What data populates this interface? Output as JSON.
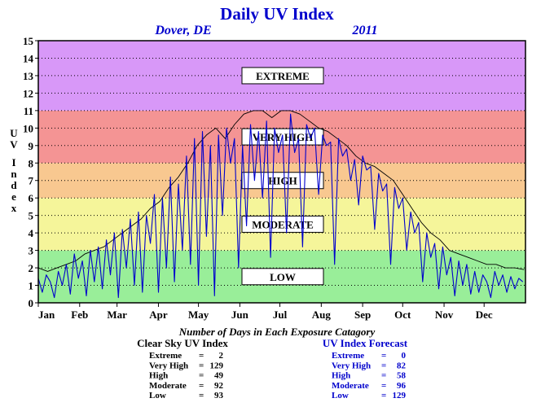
{
  "chart_data": {
    "type": "line",
    "title": "Daily UV Index",
    "location": "Dover, DE",
    "year": "2011",
    "ylabel": "UV Index",
    "ylim": [
      0,
      15
    ],
    "yticks": [
      "0",
      "1",
      "2",
      "3",
      "4",
      "5",
      "6",
      "7",
      "8",
      "9",
      "10",
      "11",
      "12",
      "13",
      "14",
      "15"
    ],
    "xlim": [
      1,
      366
    ],
    "x_tick_labels": [
      "Jan",
      "Feb",
      "Mar",
      "Apr",
      "May",
      "Jun",
      "Jul",
      "Aug",
      "Sep",
      "Oct",
      "Nov",
      "Dec"
    ],
    "month_start_days": [
      1,
      32,
      60,
      91,
      121,
      152,
      182,
      213,
      244,
      274,
      305,
      335
    ],
    "grid": true,
    "categories": [
      {
        "label": "LOW",
        "range": [
          0,
          3
        ],
        "color": "#99ee99"
      },
      {
        "label": "MODERATE",
        "range": [
          3,
          6
        ],
        "color": "#f5f59a"
      },
      {
        "label": "HIGH",
        "range": [
          6,
          8
        ],
        "color": "#f8c890"
      },
      {
        "label": "VERY HIGH",
        "range": [
          8,
          11
        ],
        "color": "#f49494"
      },
      {
        "label": "EXTREME",
        "range": [
          11,
          15
        ],
        "color": "#d898f8"
      }
    ],
    "series": [
      {
        "name": "Clear Sky UV Index",
        "color": "#000000",
        "x": [
          1,
          8,
          15,
          22,
          29,
          36,
          43,
          50,
          57,
          64,
          71,
          78,
          85,
          92,
          99,
          106,
          113,
          120,
          127,
          134,
          141,
          148,
          155,
          162,
          169,
          176,
          183,
          190,
          197,
          204,
          211,
          218,
          225,
          232,
          239,
          246,
          253,
          260,
          267,
          274,
          281,
          288,
          295,
          302,
          309,
          316,
          323,
          330,
          337,
          344,
          351,
          358,
          365
        ],
        "values": [
          2.0,
          1.8,
          2.0,
          2.2,
          2.4,
          2.8,
          3.0,
          3.2,
          3.6,
          4.0,
          4.4,
          4.8,
          5.4,
          5.8,
          6.6,
          7.2,
          8.0,
          9.0,
          9.6,
          10.0,
          9.4,
          10.2,
          10.8,
          11.0,
          11.0,
          10.6,
          11.0,
          11.0,
          10.8,
          10.4,
          10.0,
          9.8,
          9.4,
          9.0,
          8.4,
          8.0,
          7.8,
          7.4,
          7.0,
          6.2,
          5.4,
          4.6,
          4.0,
          3.6,
          3.0,
          2.8,
          2.6,
          2.4,
          2.2,
          2.2,
          2.0,
          2.0,
          1.9
        ]
      },
      {
        "name": "UV Index Forecast",
        "color": "#0000cc",
        "x": [
          1,
          4,
          7,
          10,
          13,
          16,
          19,
          22,
          25,
          28,
          31,
          34,
          37,
          40,
          43,
          46,
          49,
          52,
          55,
          58,
          61,
          64,
          67,
          70,
          73,
          76,
          79,
          82,
          85,
          88,
          91,
          94,
          97,
          100,
          103,
          106,
          109,
          112,
          115,
          118,
          121,
          124,
          127,
          130,
          133,
          136,
          139,
          142,
          145,
          148,
          151,
          154,
          157,
          160,
          163,
          166,
          169,
          172,
          175,
          178,
          181,
          184,
          187,
          190,
          193,
          196,
          199,
          202,
          205,
          208,
          211,
          214,
          217,
          220,
          223,
          226,
          229,
          232,
          235,
          238,
          241,
          244,
          247,
          250,
          253,
          256,
          259,
          262,
          265,
          268,
          271,
          274,
          277,
          280,
          283,
          286,
          289,
          292,
          295,
          298,
          301,
          304,
          307,
          310,
          313,
          316,
          319,
          322,
          325,
          328,
          331,
          334,
          337,
          340,
          343,
          346,
          349,
          352,
          355,
          358,
          361,
          364
        ],
        "values": [
          1.4,
          0.6,
          1.6,
          1.2,
          0.3,
          1.8,
          1.0,
          2.2,
          0.5,
          2.8,
          1.4,
          2.4,
          0.4,
          3.0,
          1.2,
          3.2,
          0.8,
          3.6,
          1.6,
          4.0,
          0.3,
          4.2,
          2.0,
          4.8,
          1.0,
          5.2,
          0.6,
          5.0,
          3.4,
          6.2,
          0.6,
          6.0,
          2.0,
          7.2,
          1.2,
          6.8,
          3.0,
          8.4,
          2.2,
          9.4,
          1.0,
          9.8,
          3.8,
          9.0,
          0.4,
          9.6,
          5.0,
          10.0,
          8.0,
          9.4,
          2.0,
          9.0,
          4.4,
          10.2,
          7.0,
          9.8,
          6.0,
          10.4,
          2.6,
          10.0,
          8.6,
          9.6,
          4.0,
          10.8,
          8.6,
          9.4,
          3.2,
          10.2,
          9.4,
          10.0,
          6.2,
          9.6,
          9.0,
          9.2,
          2.2,
          9.4,
          8.4,
          8.8,
          7.0,
          8.2,
          5.6,
          8.4,
          7.6,
          7.8,
          4.2,
          7.4,
          6.4,
          6.8,
          2.2,
          6.6,
          5.4,
          6.0,
          3.0,
          5.2,
          4.0,
          4.6,
          1.2,
          4.0,
          2.6,
          3.4,
          0.8,
          3.2,
          1.6,
          2.6,
          0.4,
          2.4,
          1.0,
          2.2,
          0.5,
          1.8,
          0.6,
          1.6,
          1.2,
          0.3,
          1.8,
          1.0,
          1.6,
          0.6,
          1.5,
          0.8,
          1.4,
          1.2
        ]
      }
    ],
    "annotations": {
      "caption": "Number of Days in Each Exposure Catagory",
      "stats": [
        {
          "title": "Clear Sky UV Index",
          "color": "#000000",
          "rows": [
            {
              "label": "Extreme",
              "value": "2"
            },
            {
              "label": "Very High",
              "value": "129"
            },
            {
              "label": "High",
              "value": "49"
            },
            {
              "label": "Moderate",
              "value": "92"
            },
            {
              "label": "Low",
              "value": "93"
            }
          ]
        },
        {
          "title": "UV Index Forecast",
          "color": "#0000cc",
          "rows": [
            {
              "label": "Extreme",
              "value": "0"
            },
            {
              "label": "Very High",
              "value": "82"
            },
            {
              "label": "High",
              "value": "58"
            },
            {
              "label": "Moderate",
              "value": "96"
            },
            {
              "label": "Low",
              "value": "129"
            }
          ]
        }
      ]
    }
  }
}
